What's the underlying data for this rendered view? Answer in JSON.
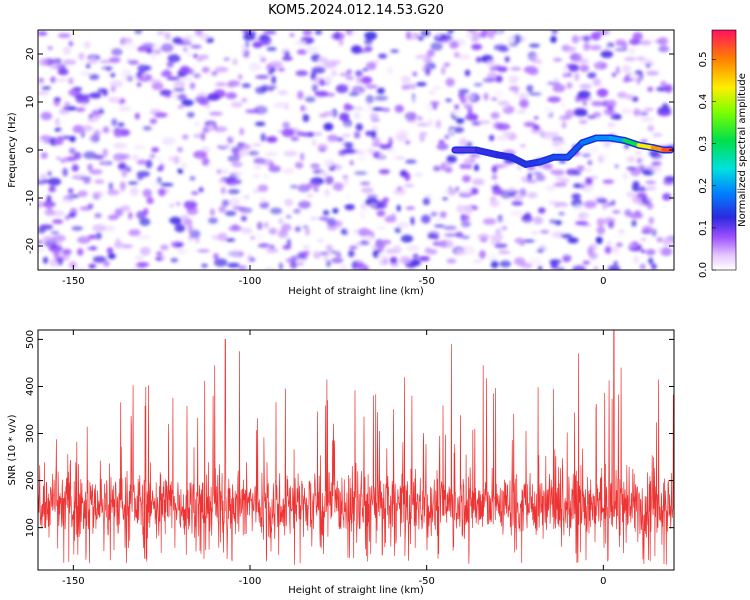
{
  "title": "KOM5.2024.012.14.53.G20",
  "chart_data": [
    {
      "type": "heatmap",
      "xlabel": "Height of straight line (km)",
      "ylabel": "Frequency (Hz)",
      "xlim": [
        -160,
        20
      ],
      "ylim": [
        -25,
        25
      ],
      "xticks": [
        "-150",
        "-100",
        "-50",
        "0"
      ],
      "yticks": [
        "-20",
        "-10",
        "0",
        "10",
        "20"
      ],
      "xtick_values": [
        -150,
        -100,
        -50,
        0
      ],
      "ytick_values": [
        -20,
        -10,
        0,
        10,
        20
      ],
      "colorbar": {
        "label": "Normalized spectral amplitude",
        "range": [
          0.0,
          0.57
        ],
        "ticks": [
          "0.0",
          "0.1",
          "0.2",
          "0.3",
          "0.4",
          "0.5"
        ],
        "tick_values": [
          0.0,
          0.1,
          0.2,
          0.3,
          0.4,
          0.5
        ]
      },
      "background_noise_amplitude": [
        0.0,
        0.12
      ],
      "signal_track": {
        "description": "Frequency ridge of the signal",
        "x": [
          -42,
          -36,
          -30,
          -26,
          -22,
          -18,
          -14,
          -10,
          -6,
          -2,
          2,
          6,
          10,
          14,
          17,
          19
        ],
        "y": [
          0,
          0,
          -1,
          -1.5,
          -3,
          -2.5,
          -1.5,
          -1.5,
          1.5,
          2.5,
          2.5,
          2,
          1,
          0.5,
          0,
          0
        ],
        "amplitude": [
          0.1,
          0.12,
          0.12,
          0.13,
          0.13,
          0.14,
          0.15,
          0.15,
          0.16,
          0.2,
          0.18,
          0.22,
          0.4,
          0.46,
          0.52,
          0.55
        ]
      }
    },
    {
      "type": "line",
      "xlabel": "Height of straight line (km)",
      "ylabel": "SNR (10 * v/v)",
      "xlim": [
        -160,
        20
      ],
      "ylim": [
        10,
        520
      ],
      "xticks": [
        "-150",
        "-100",
        "-50",
        "0"
      ],
      "yticks": [
        "100",
        "200",
        "300",
        "400",
        "500"
      ],
      "xtick_values": [
        -150,
        -100,
        -50,
        0
      ],
      "ytick_values": [
        100,
        200,
        300,
        400,
        500
      ],
      "series": [
        {
          "color": "#ee3333",
          "baseline": 150,
          "spread": 45,
          "range": [
            20,
            520
          ]
        }
      ],
      "notable_peaks": [
        {
          "x": -110,
          "y": 445
        },
        {
          "x": -107,
          "y": 500
        },
        {
          "x": -103,
          "y": 475
        },
        {
          "x": -43,
          "y": 490
        },
        {
          "x": -34,
          "y": 445
        },
        {
          "x": -7,
          "y": 470
        },
        {
          "x": 3,
          "y": 520
        },
        {
          "x": 5,
          "y": 440
        }
      ]
    }
  ]
}
